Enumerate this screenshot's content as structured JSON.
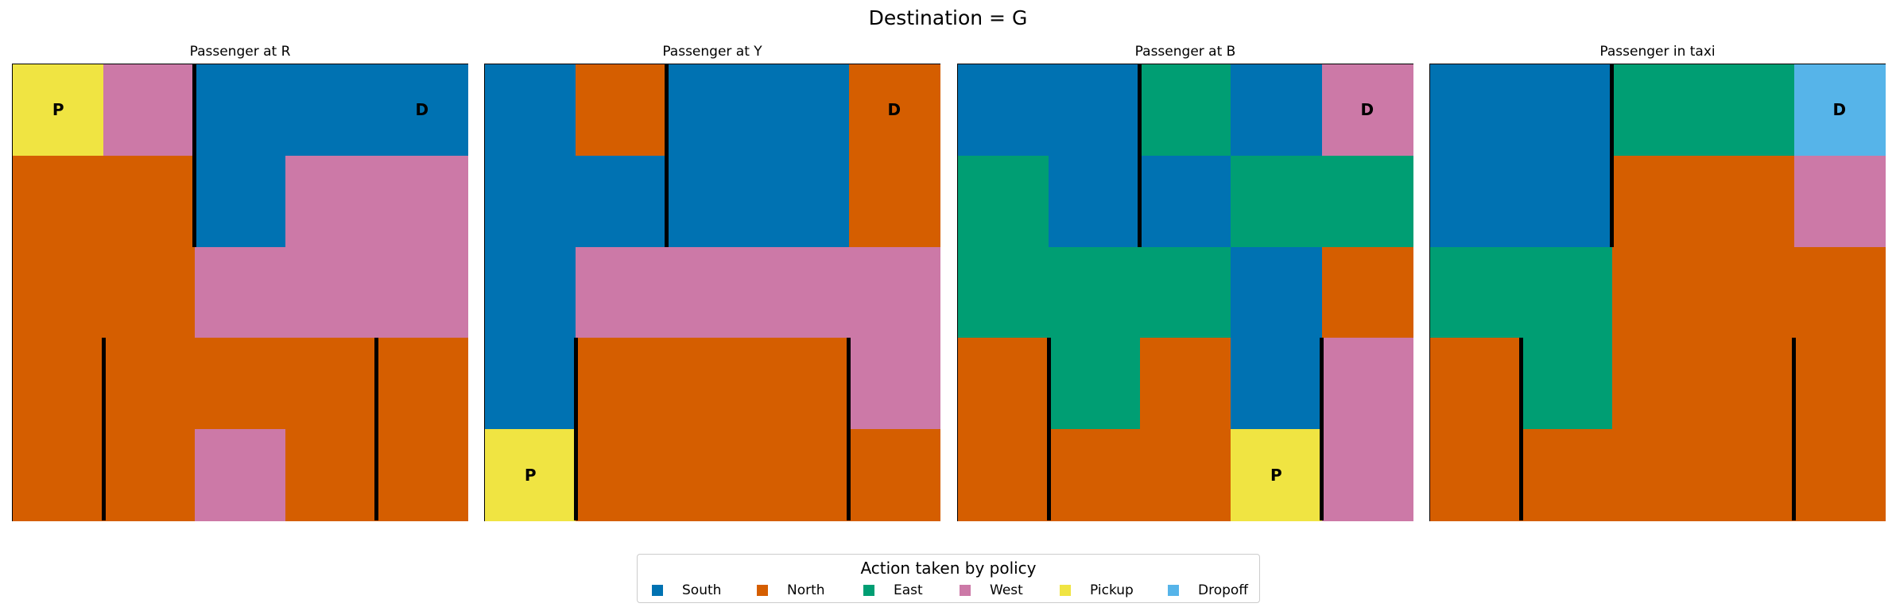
{
  "suptitle": "Destination = G",
  "colors": {
    "South": "#0072B2",
    "North": "#D55E00",
    "East": "#009E73",
    "West": "#CC79A7",
    "Pickup": "#F0E442",
    "Dropoff": "#56B4E9"
  },
  "legend": {
    "title": "Action taken by policy",
    "items": [
      "South",
      "North",
      "East",
      "West",
      "Pickup",
      "Dropoff"
    ]
  },
  "chart_data": {
    "type": "heatmap",
    "grid_size": [
      5,
      5
    ],
    "walls": [
      {
        "between_cols": [
          1,
          2
        ],
        "rows": [
          0,
          1
        ]
      },
      {
        "between_cols": [
          0,
          1
        ],
        "rows": [
          3,
          4
        ]
      },
      {
        "between_cols": [
          3,
          4
        ],
        "rows": [
          3,
          4
        ]
      }
    ],
    "panels": [
      {
        "title": "Passenger at R",
        "actions": [
          [
            "Pickup",
            "West",
            "South",
            "South",
            "South"
          ],
          [
            "North",
            "North",
            "South",
            "West",
            "West"
          ],
          [
            "North",
            "North",
            "West",
            "West",
            "West"
          ],
          [
            "North",
            "North",
            "North",
            "North",
            "North"
          ],
          [
            "North",
            "North",
            "West",
            "North",
            "North"
          ]
        ],
        "markers": [
          {
            "text": "P",
            "row": 0,
            "col": 0
          },
          {
            "text": "D",
            "row": 0,
            "col": 4
          }
        ]
      },
      {
        "title": "Passenger at Y",
        "actions": [
          [
            "South",
            "North",
            "South",
            "South",
            "North"
          ],
          [
            "South",
            "South",
            "South",
            "South",
            "North"
          ],
          [
            "South",
            "West",
            "West",
            "West",
            "West"
          ],
          [
            "South",
            "North",
            "North",
            "North",
            "West"
          ],
          [
            "Pickup",
            "North",
            "North",
            "North",
            "North"
          ]
        ],
        "markers": [
          {
            "text": "P",
            "row": 4,
            "col": 0
          },
          {
            "text": "D",
            "row": 0,
            "col": 4
          }
        ]
      },
      {
        "title": "Passenger at B",
        "actions": [
          [
            "South",
            "South",
            "East",
            "South",
            "West"
          ],
          [
            "East",
            "South",
            "South",
            "East",
            "East"
          ],
          [
            "East",
            "East",
            "East",
            "South",
            "North"
          ],
          [
            "North",
            "East",
            "North",
            "South",
            "West"
          ],
          [
            "North",
            "North",
            "North",
            "Pickup",
            "West"
          ]
        ],
        "markers": [
          {
            "text": "P",
            "row": 4,
            "col": 3
          },
          {
            "text": "D",
            "row": 0,
            "col": 4
          }
        ]
      },
      {
        "title": "Passenger in taxi",
        "actions": [
          [
            "South",
            "South",
            "East",
            "East",
            "Dropoff"
          ],
          [
            "South",
            "South",
            "North",
            "North",
            "West"
          ],
          [
            "East",
            "East",
            "North",
            "North",
            "North"
          ],
          [
            "North",
            "East",
            "North",
            "North",
            "North"
          ],
          [
            "North",
            "North",
            "North",
            "North",
            "North"
          ]
        ],
        "markers": [
          {
            "text": "D",
            "row": 0,
            "col": 4
          }
        ]
      }
    ]
  }
}
